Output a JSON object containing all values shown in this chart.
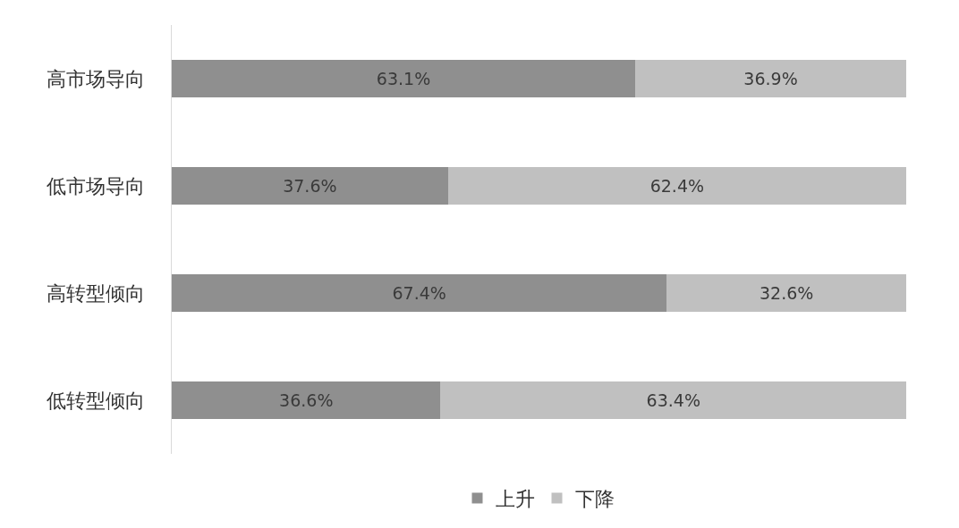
{
  "chart_data": {
    "type": "bar",
    "orientation": "horizontal",
    "stacked": true,
    "categories": [
      "高市场导向",
      "低市场导向",
      "高转型倾向",
      "低转型倾向"
    ],
    "series": [
      {
        "name": "上升",
        "color": "#8f8f8f",
        "values": [
          63.1,
          37.6,
          67.4,
          36.6
        ],
        "value_labels": [
          "63.1%",
          "37.6%",
          "67.4%",
          "36.6%"
        ]
      },
      {
        "name": "下降",
        "color": "#c0c0c0",
        "values": [
          36.9,
          62.4,
          32.6,
          63.4
        ],
        "value_labels": [
          "36.9%",
          "62.4%",
          "32.6%",
          "63.4%"
        ]
      }
    ],
    "xlim": [
      0,
      100
    ],
    "tick_labels": "y",
    "legend": "bottom"
  }
}
